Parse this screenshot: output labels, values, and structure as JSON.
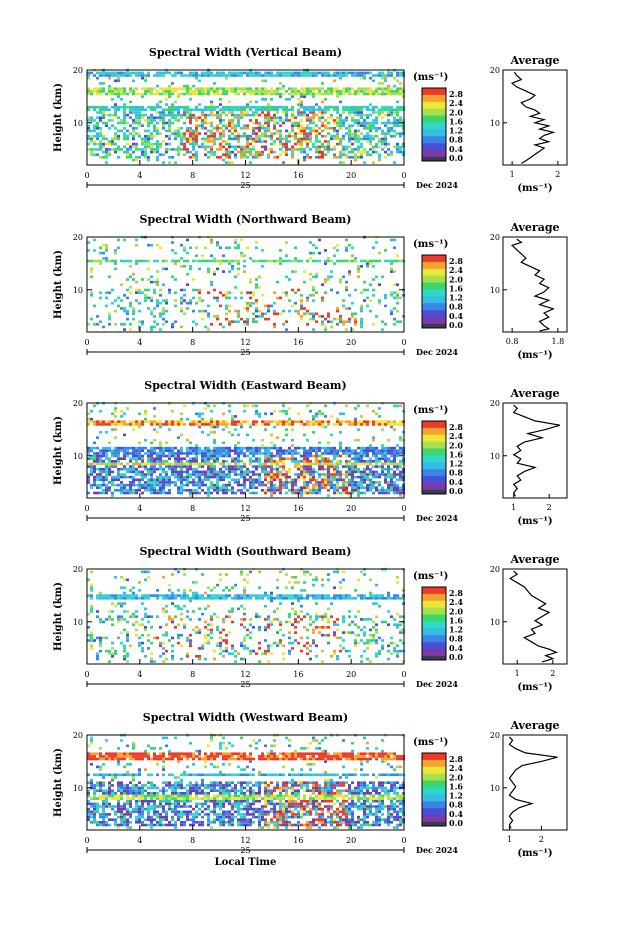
{
  "colorbar_colors": [
    "#7a3aa8",
    "#4a4fd8",
    "#3a86e8",
    "#36bde6",
    "#2fd8c8",
    "#3ed66a",
    "#a6e04a",
    "#ece63a",
    "#f7a22f",
    "#ee3a2a"
  ],
  "colorbar_bottom_color": "#3b3b4d",
  "chart_data": [
    {
      "type": "heatmap",
      "title": "Spectral Width (Vertical Beam)",
      "ylabel": "Height (km)",
      "x_ticks": [
        "0",
        "4",
        "8",
        "12",
        "16",
        "20",
        "0"
      ],
      "y_ticks": [
        "20",
        "10"
      ],
      "date_label": "25",
      "month_label": "Dec 2024",
      "colorbar": {
        "unit": "(ms⁻¹)",
        "ticks": [
          "2.8",
          "2.4",
          "2.0",
          "1.6",
          "1.2",
          "0.8",
          "0.4",
          "0.0"
        ]
      },
      "profile": {
        "title": "Average",
        "xlabel": "(ms⁻¹)",
        "x_ticks": [
          "1",
          "2"
        ],
        "x_tick_values": [
          1,
          2
        ],
        "xlim": [
          0.8,
          2.2
        ],
        "y_ticks": [
          "20",
          "10"
        ],
        "ylim": [
          2,
          20
        ],
        "points": [
          [
            1.05,
            19.6
          ],
          [
            1.1,
            19
          ],
          [
            1.2,
            18.2
          ],
          [
            1.0,
            17.5
          ],
          [
            1.1,
            16.8
          ],
          [
            1.3,
            16
          ],
          [
            1.5,
            15.2
          ],
          [
            1.4,
            14.5
          ],
          [
            1.2,
            13.8
          ],
          [
            1.3,
            13
          ],
          [
            1.5,
            12.4
          ],
          [
            1.6,
            11.8
          ],
          [
            1.4,
            11.2
          ],
          [
            1.7,
            10.6
          ],
          [
            1.5,
            10
          ],
          [
            1.8,
            9.4
          ],
          [
            1.6,
            8.8
          ],
          [
            1.9,
            8.2
          ],
          [
            1.7,
            7.6
          ],
          [
            1.6,
            7
          ],
          [
            1.8,
            6.4
          ],
          [
            1.5,
            5.8
          ],
          [
            1.7,
            5.2
          ],
          [
            1.6,
            4.6
          ],
          [
            1.5,
            4
          ],
          [
            1.4,
            3.4
          ],
          [
            1.3,
            2.8
          ],
          [
            1.2,
            2.3
          ]
        ]
      }
    },
    {
      "type": "heatmap",
      "title": "Spectral Width (Northward Beam)",
      "ylabel": "Height (km)",
      "x_ticks": [
        "0",
        "4",
        "8",
        "12",
        "16",
        "20",
        "0"
      ],
      "y_ticks": [
        "20",
        "10"
      ],
      "date_label": "25",
      "month_label": "Dec 2024",
      "colorbar": {
        "unit": "(ms⁻¹)",
        "ticks": [
          "2.8",
          "2.4",
          "2.0",
          "1.6",
          "1.2",
          "0.8",
          "0.4",
          "0.0"
        ]
      },
      "profile": {
        "title": "Average",
        "xlabel": "(ms⁻¹)",
        "x_ticks": [
          "0.8",
          "1.8"
        ],
        "x_tick_values": [
          0.8,
          1.8
        ],
        "xlim": [
          0.6,
          2.0
        ],
        "y_ticks": [
          "20",
          "10"
        ],
        "ylim": [
          2,
          20
        ],
        "points": [
          [
            0.9,
            19.6
          ],
          [
            1.0,
            19
          ],
          [
            0.8,
            18.4
          ],
          [
            0.9,
            17.6
          ],
          [
            1.0,
            16.8
          ],
          [
            1.1,
            16
          ],
          [
            1.0,
            15.2
          ],
          [
            1.2,
            14.4
          ],
          [
            1.4,
            13.6
          ],
          [
            1.3,
            12.8
          ],
          [
            1.5,
            12
          ],
          [
            1.4,
            11.2
          ],
          [
            1.6,
            10.4
          ],
          [
            1.5,
            9.6
          ],
          [
            1.3,
            8.8
          ],
          [
            1.6,
            8
          ],
          [
            1.4,
            7.2
          ],
          [
            1.7,
            6.4
          ],
          [
            1.5,
            5.6
          ],
          [
            1.6,
            4.8
          ],
          [
            1.4,
            4
          ],
          [
            1.5,
            3.2
          ],
          [
            1.6,
            2.6
          ],
          [
            1.4,
            2.2
          ]
        ]
      }
    },
    {
      "type": "heatmap",
      "title": "Spectral Width (Eastward Beam)",
      "ylabel": "Height (km)",
      "x_ticks": [
        "0",
        "4",
        "8",
        "12",
        "16",
        "20",
        "0"
      ],
      "y_ticks": [
        "20",
        "10"
      ],
      "date_label": "25",
      "month_label": "Dec 2024",
      "colorbar": {
        "unit": "(ms⁻¹)",
        "ticks": [
          "2.8",
          "2.4",
          "2.0",
          "1.6",
          "1.2",
          "0.8",
          "0.4",
          "0.0"
        ]
      },
      "profile": {
        "title": "Average",
        "xlabel": "(ms⁻¹)",
        "x_ticks": [
          "1",
          "2"
        ],
        "x_tick_values": [
          1,
          2
        ],
        "xlim": [
          0.7,
          2.5
        ],
        "y_ticks": [
          "20",
          "10"
        ],
        "ylim": [
          2,
          20
        ],
        "points": [
          [
            1.0,
            19.6
          ],
          [
            1.1,
            19
          ],
          [
            1.0,
            18.2
          ],
          [
            1.3,
            17.4
          ],
          [
            1.6,
            16.6
          ],
          [
            2.3,
            15.8
          ],
          [
            1.9,
            15
          ],
          [
            1.4,
            14.2
          ],
          [
            1.8,
            13.4
          ],
          [
            1.3,
            12.6
          ],
          [
            1.1,
            11.8
          ],
          [
            1.2,
            11
          ],
          [
            1.0,
            10.2
          ],
          [
            1.2,
            9.4
          ],
          [
            1.1,
            8.6
          ],
          [
            1.6,
            7.8
          ],
          [
            1.3,
            7
          ],
          [
            1.1,
            6.2
          ],
          [
            1.2,
            5.4
          ],
          [
            1.0,
            4.6
          ],
          [
            1.1,
            3.8
          ],
          [
            1.0,
            3
          ],
          [
            1.05,
            2.3
          ]
        ]
      }
    },
    {
      "type": "heatmap",
      "title": "Spectral Width (Southward Beam)",
      "ylabel": "Height (km)",
      "x_ticks": [
        "0",
        "4",
        "8",
        "12",
        "16",
        "20",
        "0"
      ],
      "y_ticks": [
        "20",
        "10"
      ],
      "date_label": "25",
      "month_label": "Dec 2024",
      "colorbar": {
        "unit": "(ms⁻¹)",
        "ticks": [
          "2.8",
          "2.4",
          "2.0",
          "1.6",
          "1.2",
          "0.8",
          "0.4",
          "0.0"
        ]
      },
      "profile": {
        "title": "Average",
        "xlabel": "(ms⁻¹)",
        "x_ticks": [
          "1",
          "2"
        ],
        "x_tick_values": [
          1,
          2
        ],
        "xlim": [
          0.6,
          2.4
        ],
        "y_ticks": [
          "20",
          "10"
        ],
        "ylim": [
          2,
          20
        ],
        "points": [
          [
            0.9,
            19.6
          ],
          [
            1.0,
            19
          ],
          [
            0.8,
            18.2
          ],
          [
            1.0,
            17.4
          ],
          [
            1.2,
            16.6
          ],
          [
            1.3,
            15.8
          ],
          [
            1.4,
            15
          ],
          [
            1.6,
            14.2
          ],
          [
            1.8,
            13.4
          ],
          [
            1.6,
            12.6
          ],
          [
            1.9,
            11.8
          ],
          [
            1.7,
            11
          ],
          [
            1.5,
            10.2
          ],
          [
            1.7,
            9.4
          ],
          [
            1.4,
            8.6
          ],
          [
            1.5,
            7.8
          ],
          [
            1.2,
            7
          ],
          [
            1.4,
            6.2
          ],
          [
            1.6,
            5.4
          ],
          [
            1.9,
            4.8
          ],
          [
            2.1,
            4.2
          ],
          [
            1.8,
            3.6
          ],
          [
            2.0,
            3
          ],
          [
            1.7,
            2.4
          ]
        ]
      }
    },
    {
      "type": "heatmap",
      "title": "Spectral Width (Westward Beam)",
      "ylabel": "Height (km)",
      "xlabel": "Local Time",
      "x_ticks": [
        "0",
        "4",
        "8",
        "12",
        "16",
        "20",
        "0"
      ],
      "y_ticks": [
        "20",
        "10"
      ],
      "date_label": "25",
      "month_label": "Dec 2024",
      "colorbar": {
        "unit": "(ms⁻¹)",
        "ticks": [
          "2.8",
          "2.4",
          "2.0",
          "1.6",
          "1.2",
          "0.8",
          "0.4",
          "0.0"
        ]
      },
      "profile": {
        "title": "Average",
        "xlabel": "(ms⁻¹)",
        "x_ticks": [
          "1",
          "2"
        ],
        "x_tick_values": [
          1,
          2
        ],
        "xlim": [
          0.8,
          2.8
        ],
        "y_ticks": [
          "20",
          "10"
        ],
        "ylim": [
          2,
          20
        ],
        "points": [
          [
            1.0,
            19.6
          ],
          [
            1.1,
            19
          ],
          [
            1.0,
            18.2
          ],
          [
            1.2,
            17.4
          ],
          [
            1.5,
            16.6
          ],
          [
            2.5,
            15.8
          ],
          [
            2.0,
            15
          ],
          [
            1.4,
            14.2
          ],
          [
            1.2,
            13.4
          ],
          [
            1.1,
            12.6
          ],
          [
            1.0,
            11.8
          ],
          [
            1.1,
            11
          ],
          [
            1.2,
            10.2
          ],
          [
            1.1,
            9.4
          ],
          [
            1.0,
            8.6
          ],
          [
            1.2,
            7.8
          ],
          [
            1.7,
            7
          ],
          [
            1.3,
            6.2
          ],
          [
            1.1,
            5.4
          ],
          [
            1.0,
            4.6
          ],
          [
            1.1,
            3.8
          ],
          [
            1.0,
            3
          ],
          [
            1.05,
            2.3
          ]
        ]
      }
    }
  ]
}
